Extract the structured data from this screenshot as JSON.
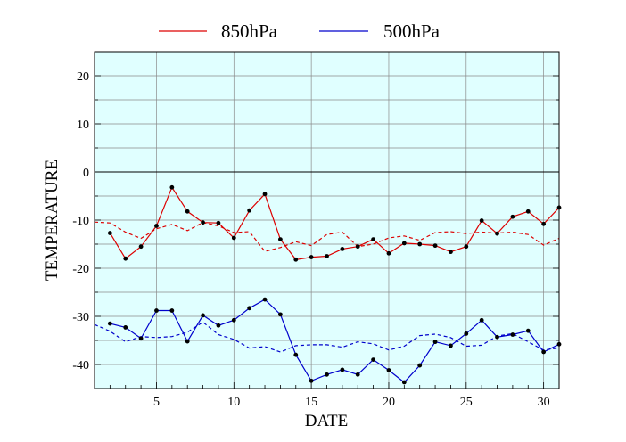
{
  "chart_data": {
    "type": "line",
    "title": "",
    "xlabel": "DATE",
    "ylabel": "TEMPERATURE",
    "xlim": [
      1,
      31
    ],
    "ylim": [
      -45,
      25
    ],
    "x_ticks": [
      5,
      10,
      15,
      20,
      25,
      30
    ],
    "y_ticks": [
      20,
      10,
      0,
      -10,
      -20,
      -30,
      -40
    ],
    "grid": true,
    "legend_position": "top",
    "plot_background": "#e0ffff",
    "zero_line": 0,
    "series": [
      {
        "name": "850hPa",
        "color": "#dd0000",
        "style": "solid",
        "markers": true,
        "x": [
          2,
          3,
          4,
          5,
          6,
          7,
          8,
          9,
          10,
          11,
          12,
          13,
          14,
          15,
          16,
          17,
          18,
          19,
          20,
          21,
          22,
          23,
          24,
          25,
          26,
          27,
          28,
          29,
          30,
          31
        ],
        "values": [
          -12.7,
          -18.0,
          -15.5,
          -11.2,
          -3.2,
          -8.2,
          -10.5,
          -10.6,
          -13.7,
          -8.0,
          -4.6,
          -14.0,
          -18.2,
          -17.7,
          -17.5,
          -16.0,
          -15.5,
          -14.0,
          -16.9,
          -14.8,
          -15.0,
          -15.3,
          -16.6,
          -15.5,
          -10.1,
          -12.8,
          -9.3,
          -8.2,
          -10.8,
          -7.4
        ]
      },
      {
        "name": "850hPa",
        "color": "#dd0000",
        "style": "dashed",
        "markers": false,
        "x": [
          1,
          2,
          3,
          4,
          5,
          6,
          7,
          8,
          9,
          10,
          11,
          12,
          13,
          14,
          15,
          16,
          17,
          18,
          19,
          20,
          21,
          22,
          23,
          24,
          25,
          26,
          27,
          28,
          29,
          30,
          31
        ],
        "values": [
          -10.4,
          -10.6,
          -12.5,
          -13.8,
          -11.8,
          -10.9,
          -12.2,
          -10.5,
          -11.2,
          -12.6,
          -12.4,
          -16.5,
          -15.7,
          -14.5,
          -15.3,
          -13.0,
          -12.5,
          -15.5,
          -15.0,
          -13.7,
          -13.3,
          -14.2,
          -12.6,
          -12.4,
          -12.8,
          -12.5,
          -12.7,
          -12.5,
          -13.0,
          -15.2,
          -13.8
        ]
      },
      {
        "name": "500hPa",
        "color": "#0000cc",
        "style": "solid",
        "markers": true,
        "x": [
          2,
          3,
          4,
          5,
          6,
          7,
          8,
          9,
          10,
          11,
          12,
          13,
          14,
          15,
          16,
          17,
          18,
          19,
          20,
          21,
          22,
          23,
          24,
          25,
          26,
          27,
          28,
          29,
          30,
          31
        ],
        "values": [
          -31.5,
          -32.3,
          -34.6,
          -28.8,
          -28.8,
          -35.2,
          -29.8,
          -31.9,
          -30.8,
          -28.3,
          -26.5,
          -29.6,
          -38.0,
          -43.4,
          -42.1,
          -41.1,
          -42.1,
          -39.0,
          -41.2,
          -43.7,
          -40.2,
          -35.3,
          -36.1,
          -33.6,
          -30.8,
          -34.3,
          -33.8,
          -33.0,
          -37.4,
          -35.8
        ]
      },
      {
        "name": "500hPa",
        "color": "#0000cc",
        "style": "dashed",
        "markers": false,
        "x": [
          1,
          2,
          3,
          4,
          5,
          6,
          7,
          8,
          9,
          10,
          11,
          12,
          13,
          14,
          15,
          16,
          17,
          18,
          19,
          20,
          21,
          22,
          23,
          24,
          25,
          26,
          27,
          28,
          29,
          30,
          31
        ],
        "values": [
          -31.7,
          -33.1,
          -35.3,
          -34.2,
          -34.4,
          -34.2,
          -33.3,
          -31.2,
          -33.8,
          -34.8,
          -36.6,
          -36.3,
          -37.4,
          -36.1,
          -35.9,
          -35.9,
          -36.4,
          -35.3,
          -35.7,
          -37.0,
          -36.2,
          -34.0,
          -33.7,
          -34.4,
          -36.2,
          -36.0,
          -34.1,
          -33.6,
          -35.3,
          -37.0,
          -36.6
        ]
      }
    ],
    "legend": [
      {
        "label": "850hPa",
        "color": "#dd0000"
      },
      {
        "label": "500hPa",
        "color": "#0000cc"
      }
    ]
  }
}
